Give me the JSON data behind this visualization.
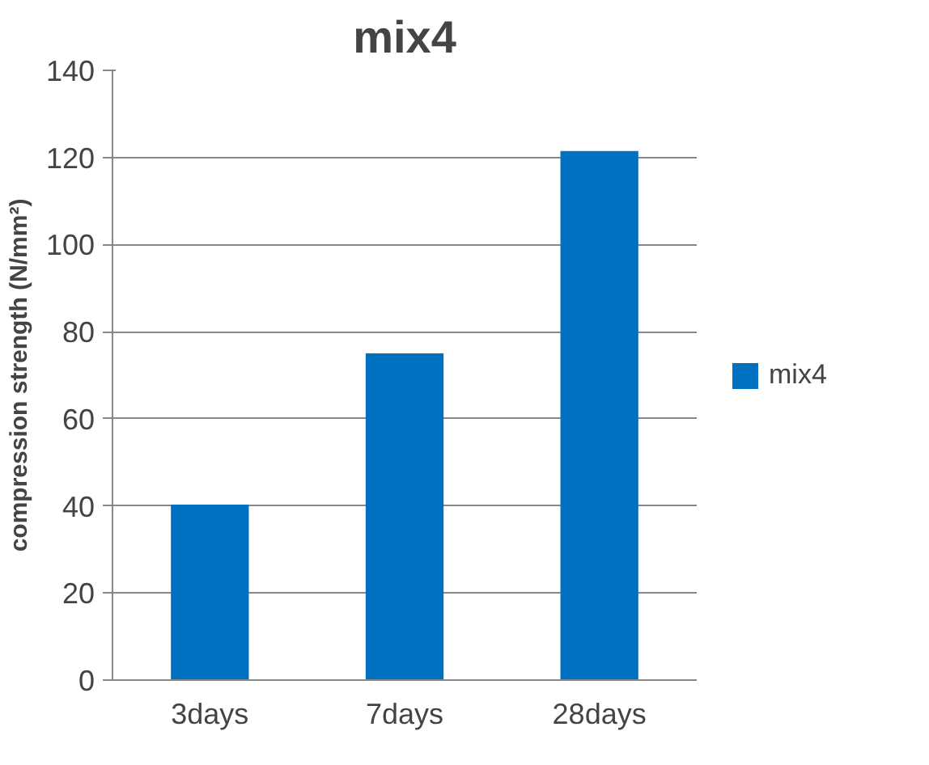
{
  "chart_data": {
    "type": "bar",
    "title": "mix4",
    "ylabel": "compression strength (N/mm²)",
    "categories": [
      "3days",
      "7days",
      "28days"
    ],
    "series": [
      {
        "name": "mix4",
        "color": "#0070c0",
        "values": [
          40.3,
          75,
          121.5
        ]
      }
    ],
    "ylim": [
      0,
      140
    ],
    "yticks": [
      0,
      20,
      40,
      60,
      80,
      100,
      120,
      140
    ],
    "grid": "y",
    "legend": "right"
  }
}
